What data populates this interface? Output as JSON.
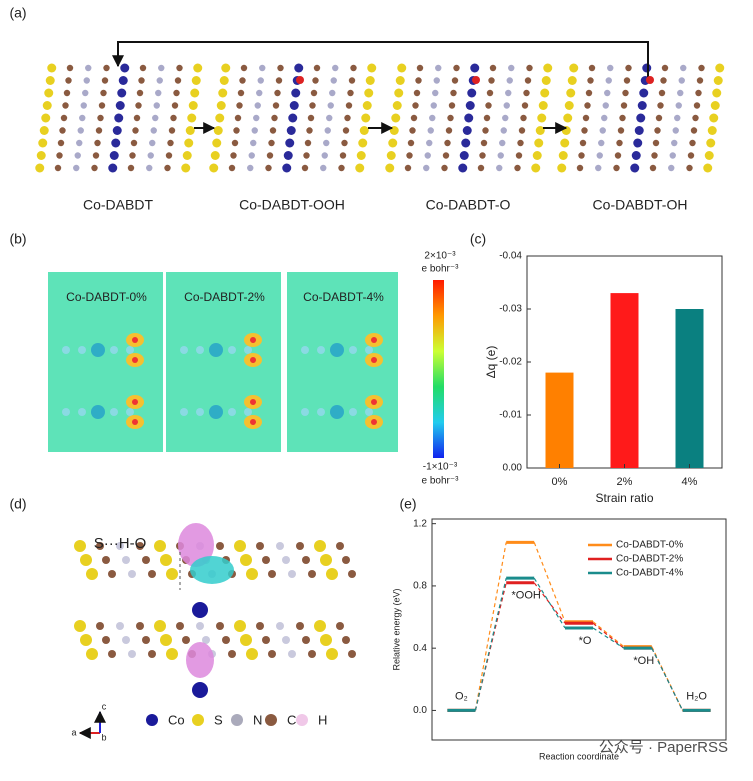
{
  "panel_labels": [
    "(a)",
    "(b)",
    "(c)",
    "(d)",
    "(e)"
  ],
  "structures": [
    "Co-DABDT",
    "Co-DABDT-OOH",
    "Co-DABDT-O",
    "Co-DABDT-OH"
  ],
  "maps": [
    "Co-DABDT-0%",
    "Co-DABDT-2%",
    "Co-DABDT-4%"
  ],
  "colorbar": {
    "max": "2×10⁻³",
    "max_unit": "e bohr⁻³",
    "min": "-1×10⁻³",
    "min_unit": "e bohr⁻³"
  },
  "structure_d": {
    "annotation": "S···H-O",
    "legend": [
      "Co",
      "S",
      "N",
      "C",
      "H"
    ],
    "axes": [
      "a",
      "c",
      "b"
    ]
  },
  "watermark": "公众号 · PaperRSS",
  "chart_data": [
    {
      "type": "bar",
      "xlabel": "Strain ratio",
      "ylabel": "Δq (e)",
      "categories": [
        "0%",
        "2%",
        "4%"
      ],
      "values": [
        -0.018,
        -0.033,
        -0.03
      ],
      "colors": [
        "#ff8000",
        "#ff1a1a",
        "#0a8080"
      ],
      "ylim": [
        0,
        -0.04
      ],
      "yticks": [
        {
          "value": 0,
          "label": "0.00"
        },
        -0.01,
        -0.02,
        -0.03,
        -0.04
      ]
    },
    {
      "type": "energy",
      "xlabel": "Reaction coordinate",
      "ylabel": "Relative energy (eV)",
      "categories": [
        "O₂",
        "*OOH",
        "*O",
        "*OH",
        "H₂O"
      ],
      "series": [
        {
          "name": "Co-DABDT-0%",
          "color": "#ff8c1a",
          "values": [
            0,
            1.08,
            0.57,
            0.41,
            0
          ]
        },
        {
          "name": "Co-DABDT-2%",
          "color": "#e02020",
          "values": [
            0,
            0.82,
            0.56,
            0.4,
            0
          ]
        },
        {
          "name": "Co-DABDT-4%",
          "color": "#1a8c8c",
          "values": [
            0,
            0.85,
            0.53,
            0.4,
            0
          ]
        }
      ],
      "ylim": [
        -0.19,
        1.23
      ],
      "yticks": [
        {
          "value": 0,
          "label": "0.0"
        },
        0.4,
        0.8,
        1.2
      ],
      "legend": "upper right"
    }
  ]
}
